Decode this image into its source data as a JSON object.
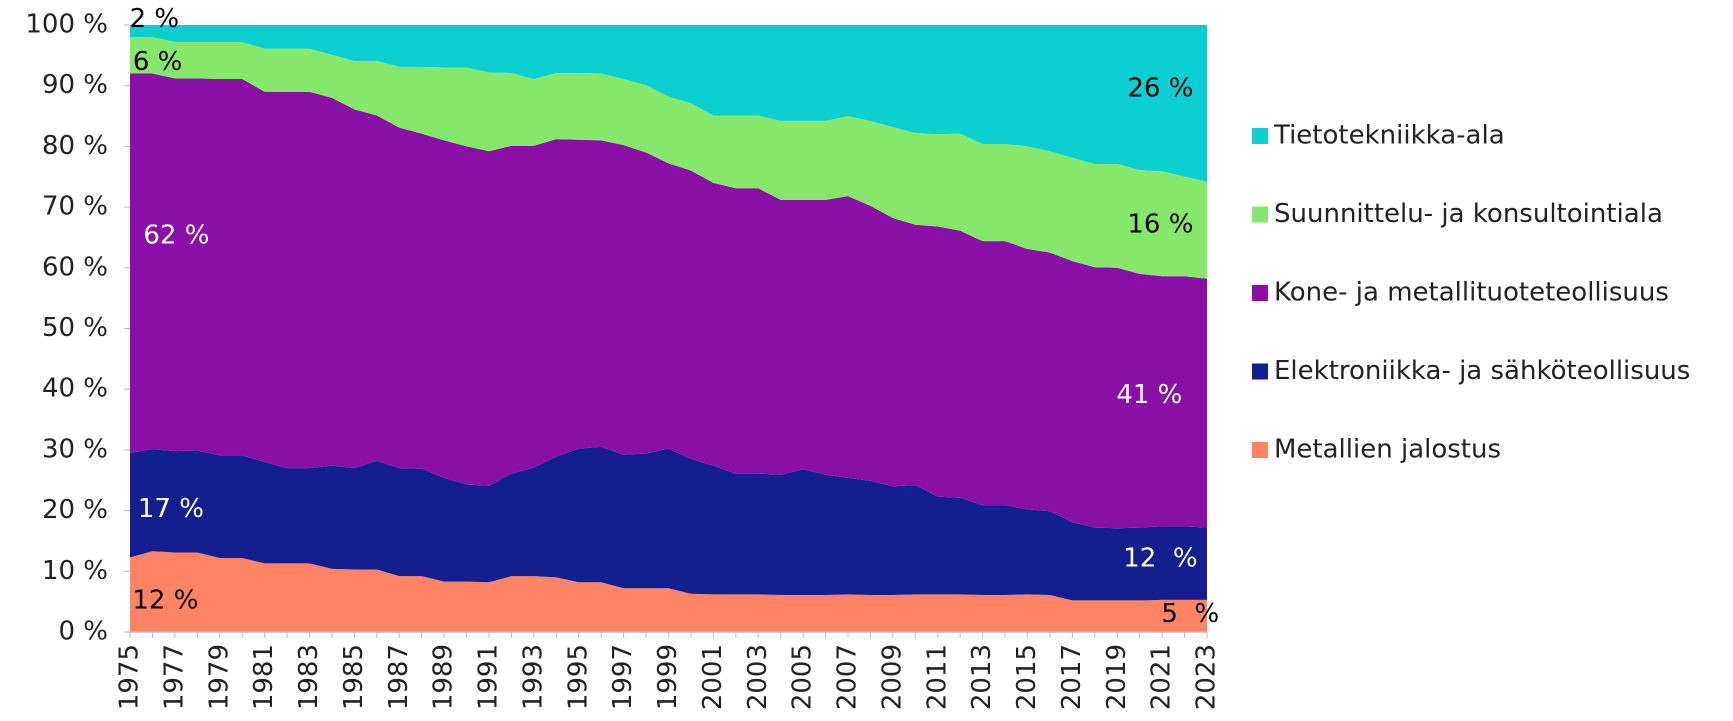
{
  "chart_data": {
    "type": "stacked_area",
    "x": [
      1975,
      1976,
      1977,
      1978,
      1979,
      1980,
      1981,
      1982,
      1983,
      1984,
      1985,
      1986,
      1987,
      1988,
      1989,
      1990,
      1991,
      1992,
      1993,
      1994,
      1995,
      1996,
      1997,
      1998,
      1999,
      2000,
      2001,
      2002,
      2003,
      2004,
      2005,
      2006,
      2007,
      2008,
      2009,
      2010,
      2011,
      2012,
      2013,
      2014,
      2015,
      2016,
      2017,
      2018,
      2019,
      2020,
      2021,
      2022,
      2023
    ],
    "xlim": [
      1975,
      2023
    ],
    "xticks": [
      1975,
      1977,
      1979,
      1981,
      1983,
      1985,
      1987,
      1989,
      1991,
      1993,
      1995,
      1997,
      1999,
      2001,
      2003,
      2005,
      2007,
      2009,
      2011,
      2013,
      2015,
      2017,
      2019,
      2021,
      2023
    ],
    "ylim": [
      0,
      100
    ],
    "yticks": [
      {
        "value": 0,
        "label": "0 %"
      },
      {
        "value": 10,
        "label": "10 %"
      },
      {
        "value": 20,
        "label": "20 %"
      },
      {
        "value": 30,
        "label": "30 %"
      },
      {
        "value": 40,
        "label": "40 %"
      },
      {
        "value": 50,
        "label": "50 %"
      },
      {
        "value": 60,
        "label": "60 %"
      },
      {
        "value": 70,
        "label": "70 %"
      },
      {
        "value": 80,
        "label": "80 %"
      },
      {
        "value": 90,
        "label": "90 %"
      },
      {
        "value": 100,
        "label": "100 %"
      }
    ],
    "legend": "right",
    "series": [
      {
        "name": "Metallien jalostus",
        "color": "#ff8466",
        "values": [
          12.3,
          13.3,
          13.1,
          13.1,
          12.2,
          12.2,
          11.3,
          11.3,
          11.3,
          10.4,
          10.3,
          10.3,
          9.2,
          9.2,
          8.3,
          8.3,
          8.2,
          9.2,
          9.2,
          9.0,
          8.2,
          8.2,
          7.2,
          7.2,
          7.2,
          6.3,
          6.2,
          6.2,
          6.2,
          6.1,
          6.1,
          6.1,
          6.2,
          6.1,
          6.1,
          6.2,
          6.2,
          6.2,
          6.1,
          6.1,
          6.2,
          6.1,
          5.2,
          5.2,
          5.2,
          5.2,
          5.3,
          5.3,
          5.3
        ]
      },
      {
        "name": "Elektroniikka- ja sähköteollisuus",
        "color": "#131e8f",
        "values": [
          17.2,
          16.8,
          16.7,
          16.8,
          16.9,
          16.9,
          16.7,
          15.7,
          15.7,
          17.0,
          16.7,
          17.9,
          17.8,
          17.7,
          17.1,
          16.0,
          15.9,
          16.9,
          17.9,
          19.9,
          22.0,
          22.3,
          22.0,
          22.2,
          23.0,
          22.2,
          21.2,
          19.9,
          19.9,
          19.8,
          20.7,
          19.8,
          19.2,
          18.8,
          17.9,
          18.0,
          16.1,
          15.9,
          14.8,
          14.8,
          14.0,
          13.8,
          12.9,
          12.0,
          11.9,
          12.0,
          12.1,
          12.1,
          11.9
        ]
      },
      {
        "name": "Kone- ja metallituoteteollisuus",
        "color": "#8a0fa6",
        "values": [
          62.5,
          61.9,
          61.4,
          61.3,
          62.0,
          62.0,
          61.0,
          62.0,
          62.0,
          60.6,
          59.1,
          56.9,
          56.1,
          55.2,
          55.6,
          55.7,
          55.1,
          54.0,
          53.0,
          52.3,
          50.9,
          50.5,
          51.0,
          49.6,
          47.0,
          47.5,
          46.6,
          47.0,
          47.0,
          45.3,
          44.4,
          45.3,
          46.4,
          45.3,
          44.2,
          42.9,
          44.5,
          44.0,
          43.5,
          43.5,
          42.9,
          42.6,
          43.0,
          42.9,
          42.9,
          41.8,
          41.2,
          41.2,
          41.0
        ]
      },
      {
        "name": "Suunnittelu- ja konsultointiala",
        "color": "#86e86a",
        "values": [
          6.0,
          6.0,
          6.0,
          6.0,
          6.1,
          6.1,
          7.1,
          7.1,
          7.1,
          7.1,
          8.0,
          9.0,
          10.0,
          11.0,
          12.0,
          13.0,
          13.0,
          12.0,
          11.0,
          10.9,
          11.0,
          11.0,
          10.9,
          11.1,
          11.0,
          11.1,
          11.1,
          12.0,
          12.0,
          13.0,
          13.0,
          13.0,
          13.2,
          14.0,
          15.0,
          15.1,
          15.2,
          16.0,
          16.0,
          16.0,
          16.9,
          16.7,
          17.0,
          17.0,
          17.1,
          17.1,
          17.3,
          16.4,
          16.0
        ]
      },
      {
        "name": "Tietotekniikka-ala",
        "color": "#0bcfd1",
        "values": [
          2.0,
          2.0,
          2.8,
          2.8,
          2.8,
          2.8,
          3.9,
          3.9,
          3.9,
          4.9,
          5.9,
          5.9,
          6.9,
          6.9,
          7.0,
          7.0,
          7.8,
          7.9,
          8.9,
          7.9,
          7.9,
          8.0,
          8.9,
          9.9,
          11.8,
          12.9,
          14.9,
          14.9,
          14.9,
          15.8,
          15.8,
          15.8,
          15.0,
          15.8,
          16.8,
          17.8,
          18.0,
          17.9,
          19.6,
          19.6,
          20.0,
          20.8,
          21.9,
          22.9,
          22.9,
          23.9,
          24.1,
          25.0,
          25.8
        ]
      }
    ],
    "annotations": [
      "2 %",
      "6 %",
      "62 %",
      "17 %",
      "12 %",
      "26 %",
      "16 %",
      "41 %",
      "12  %",
      "5  %"
    ]
  }
}
